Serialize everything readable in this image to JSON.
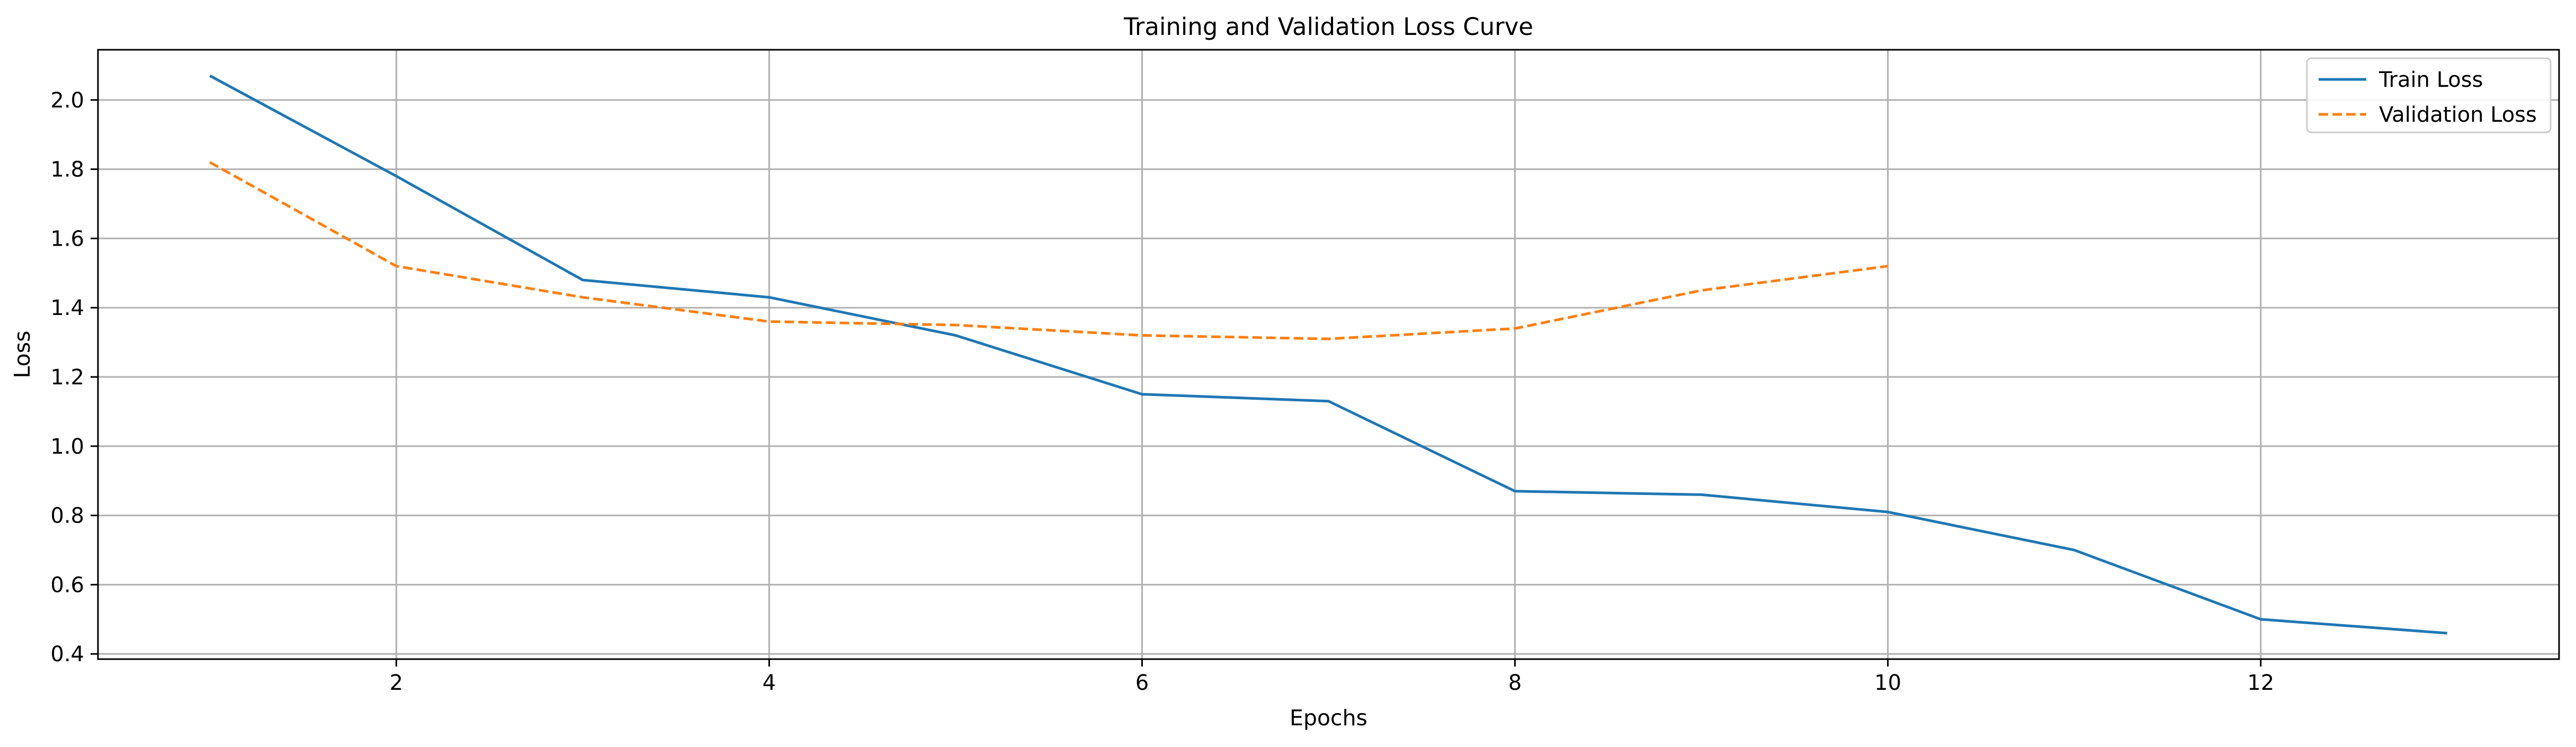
{
  "chart_data": {
    "type": "line",
    "title": "Training and Validation Loss Curve",
    "xlabel": "Epochs",
    "ylabel": "Loss",
    "xlim": [
      0.4,
      13.6
    ],
    "ylim": [
      0.385,
      2.145
    ],
    "xticks": [
      2,
      4,
      6,
      8,
      10,
      12
    ],
    "yticks": [
      0.4,
      0.6,
      0.8,
      1.0,
      1.2,
      1.4,
      1.6,
      1.8,
      2.0
    ],
    "grid": true,
    "legend_position": "top-right",
    "series": [
      {
        "name": "Train Loss",
        "color": "#1f77b4",
        "line_style": "solid",
        "x": [
          1,
          2,
          3,
          4,
          5,
          6,
          7,
          8,
          9,
          10,
          11,
          12,
          13
        ],
        "values": [
          2.07,
          1.78,
          1.48,
          1.43,
          1.32,
          1.15,
          1.13,
          0.87,
          0.86,
          0.81,
          0.7,
          0.5,
          0.46
        ]
      },
      {
        "name": "Validation Loss",
        "color": "#ff7f0e",
        "line_style": "dashed",
        "x": [
          1,
          2,
          3,
          4,
          5,
          6,
          7,
          8,
          9,
          10
        ],
        "values": [
          1.82,
          1.52,
          1.43,
          1.36,
          1.35,
          1.32,
          1.31,
          1.34,
          1.45,
          1.52
        ]
      }
    ]
  }
}
